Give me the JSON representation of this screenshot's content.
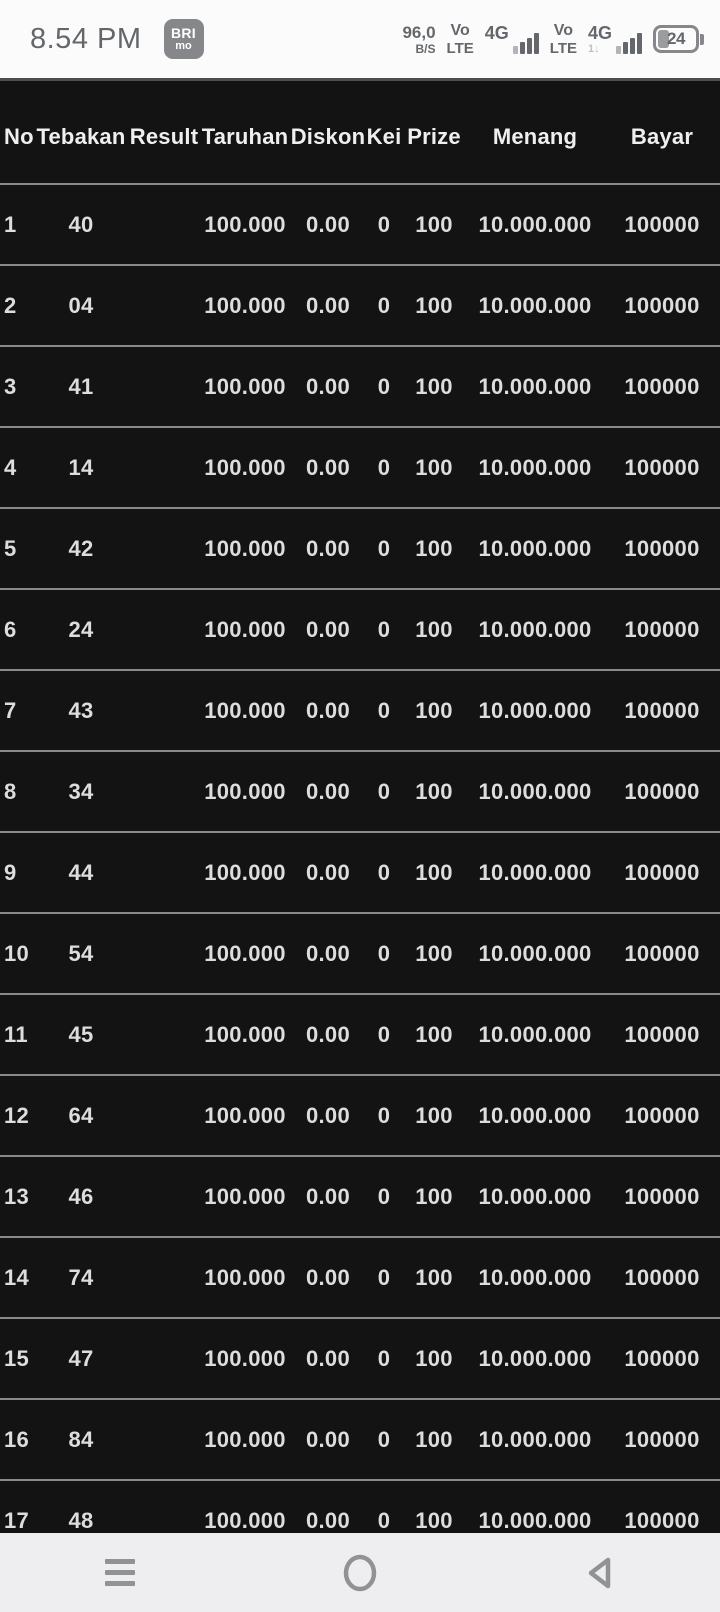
{
  "status_bar": {
    "time": "8.54 PM",
    "app_badge": {
      "line1": "BRI",
      "line2": "mo"
    },
    "network_speed": {
      "value": "96,0",
      "unit": "B/S"
    },
    "sim1": {
      "volte_top": "Vo",
      "volte_bottom": "LTE",
      "network": "4G"
    },
    "sim2": {
      "volte_top": "Vo",
      "volte_bottom": "LTE",
      "network": "4G",
      "sub_indicator": "1↓"
    },
    "battery": {
      "percent": "24"
    }
  },
  "table": {
    "columns": [
      {
        "key": "no",
        "label": "No."
      },
      {
        "key": "tebakan",
        "label": "Tebakan"
      },
      {
        "key": "result",
        "label": "Result"
      },
      {
        "key": "taruhan",
        "label": "Taruhan"
      },
      {
        "key": "diskon",
        "label": "Diskon"
      },
      {
        "key": "kei",
        "label": "Kei"
      },
      {
        "key": "prize",
        "label": "Prize"
      },
      {
        "key": "menang",
        "label": "Menang"
      },
      {
        "key": "bayar",
        "label": "Bayar"
      }
    ],
    "rows": [
      {
        "no": "1",
        "tebakan": "40",
        "result": "",
        "taruhan": "100.000",
        "diskon": "0.00",
        "kei": "0",
        "prize": "100",
        "menang": "10.000.000",
        "bayar": "100000"
      },
      {
        "no": "2",
        "tebakan": "04",
        "result": "",
        "taruhan": "100.000",
        "diskon": "0.00",
        "kei": "0",
        "prize": "100",
        "menang": "10.000.000",
        "bayar": "100000"
      },
      {
        "no": "3",
        "tebakan": "41",
        "result": "",
        "taruhan": "100.000",
        "diskon": "0.00",
        "kei": "0",
        "prize": "100",
        "menang": "10.000.000",
        "bayar": "100000"
      },
      {
        "no": "4",
        "tebakan": "14",
        "result": "",
        "taruhan": "100.000",
        "diskon": "0.00",
        "kei": "0",
        "prize": "100",
        "menang": "10.000.000",
        "bayar": "100000"
      },
      {
        "no": "5",
        "tebakan": "42",
        "result": "",
        "taruhan": "100.000",
        "diskon": "0.00",
        "kei": "0",
        "prize": "100",
        "menang": "10.000.000",
        "bayar": "100000"
      },
      {
        "no": "6",
        "tebakan": "24",
        "result": "",
        "taruhan": "100.000",
        "diskon": "0.00",
        "kei": "0",
        "prize": "100",
        "menang": "10.000.000",
        "bayar": "100000"
      },
      {
        "no": "7",
        "tebakan": "43",
        "result": "",
        "taruhan": "100.000",
        "diskon": "0.00",
        "kei": "0",
        "prize": "100",
        "menang": "10.000.000",
        "bayar": "100000"
      },
      {
        "no": "8",
        "tebakan": "34",
        "result": "",
        "taruhan": "100.000",
        "diskon": "0.00",
        "kei": "0",
        "prize": "100",
        "menang": "10.000.000",
        "bayar": "100000"
      },
      {
        "no": "9",
        "tebakan": "44",
        "result": "",
        "taruhan": "100.000",
        "diskon": "0.00",
        "kei": "0",
        "prize": "100",
        "menang": "10.000.000",
        "bayar": "100000"
      },
      {
        "no": "10",
        "tebakan": "54",
        "result": "",
        "taruhan": "100.000",
        "diskon": "0.00",
        "kei": "0",
        "prize": "100",
        "menang": "10.000.000",
        "bayar": "100000"
      },
      {
        "no": "11",
        "tebakan": "45",
        "result": "",
        "taruhan": "100.000",
        "diskon": "0.00",
        "kei": "0",
        "prize": "100",
        "menang": "10.000.000",
        "bayar": "100000"
      },
      {
        "no": "12",
        "tebakan": "64",
        "result": "",
        "taruhan": "100.000",
        "diskon": "0.00",
        "kei": "0",
        "prize": "100",
        "menang": "10.000.000",
        "bayar": "100000"
      },
      {
        "no": "13",
        "tebakan": "46",
        "result": "",
        "taruhan": "100.000",
        "diskon": "0.00",
        "kei": "0",
        "prize": "100",
        "menang": "10.000.000",
        "bayar": "100000"
      },
      {
        "no": "14",
        "tebakan": "74",
        "result": "",
        "taruhan": "100.000",
        "diskon": "0.00",
        "kei": "0",
        "prize": "100",
        "menang": "10.000.000",
        "bayar": "100000"
      },
      {
        "no": "15",
        "tebakan": "47",
        "result": "",
        "taruhan": "100.000",
        "diskon": "0.00",
        "kei": "0",
        "prize": "100",
        "menang": "10.000.000",
        "bayar": "100000"
      },
      {
        "no": "16",
        "tebakan": "84",
        "result": "",
        "taruhan": "100.000",
        "diskon": "0.00",
        "kei": "0",
        "prize": "100",
        "menang": "10.000.000",
        "bayar": "100000"
      },
      {
        "no": "17",
        "tebakan": "48",
        "result": "",
        "taruhan": "100.000",
        "diskon": "0.00",
        "kei": "0",
        "prize": "100",
        "menang": "10.000.000",
        "bayar": "100000"
      }
    ]
  },
  "nav_bar": {
    "icons": [
      {
        "name": "menu-icon"
      },
      {
        "name": "home-icon"
      },
      {
        "name": "back-icon"
      }
    ]
  },
  "colors": {
    "table_bg": "#131313",
    "separator": "#8a8a8a",
    "table_text": "#dddddd",
    "status_text": "#64686c",
    "nav_bg": "#eeeef0",
    "nav_icon": "#909294"
  }
}
